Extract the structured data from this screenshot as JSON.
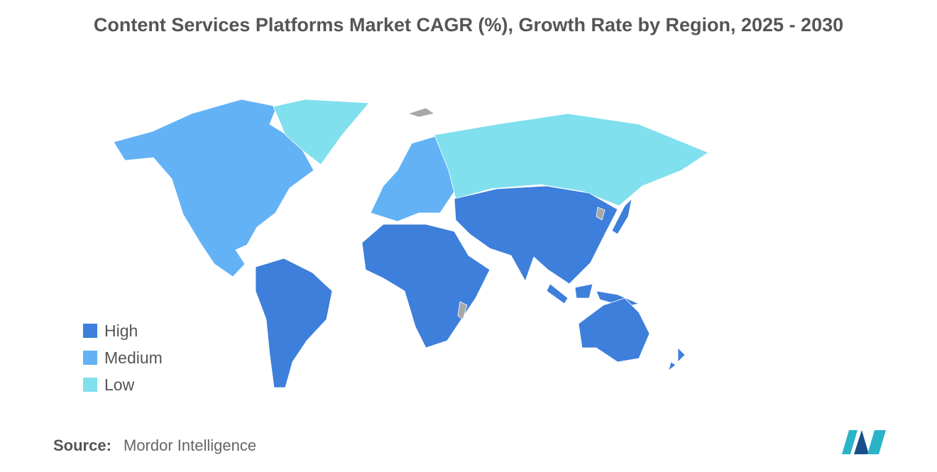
{
  "title": "Content Services Platforms Market CAGR (%), Growth Rate by Region, 2025 - 2030",
  "legend": [
    {
      "label": "High",
      "color": "#3d7fdb"
    },
    {
      "label": "Medium",
      "color": "#64b2f6"
    },
    {
      "label": "Low",
      "color": "#80e0ee"
    }
  ],
  "source": {
    "label": "Source:",
    "text": "Mordor Intelligence"
  }
}
